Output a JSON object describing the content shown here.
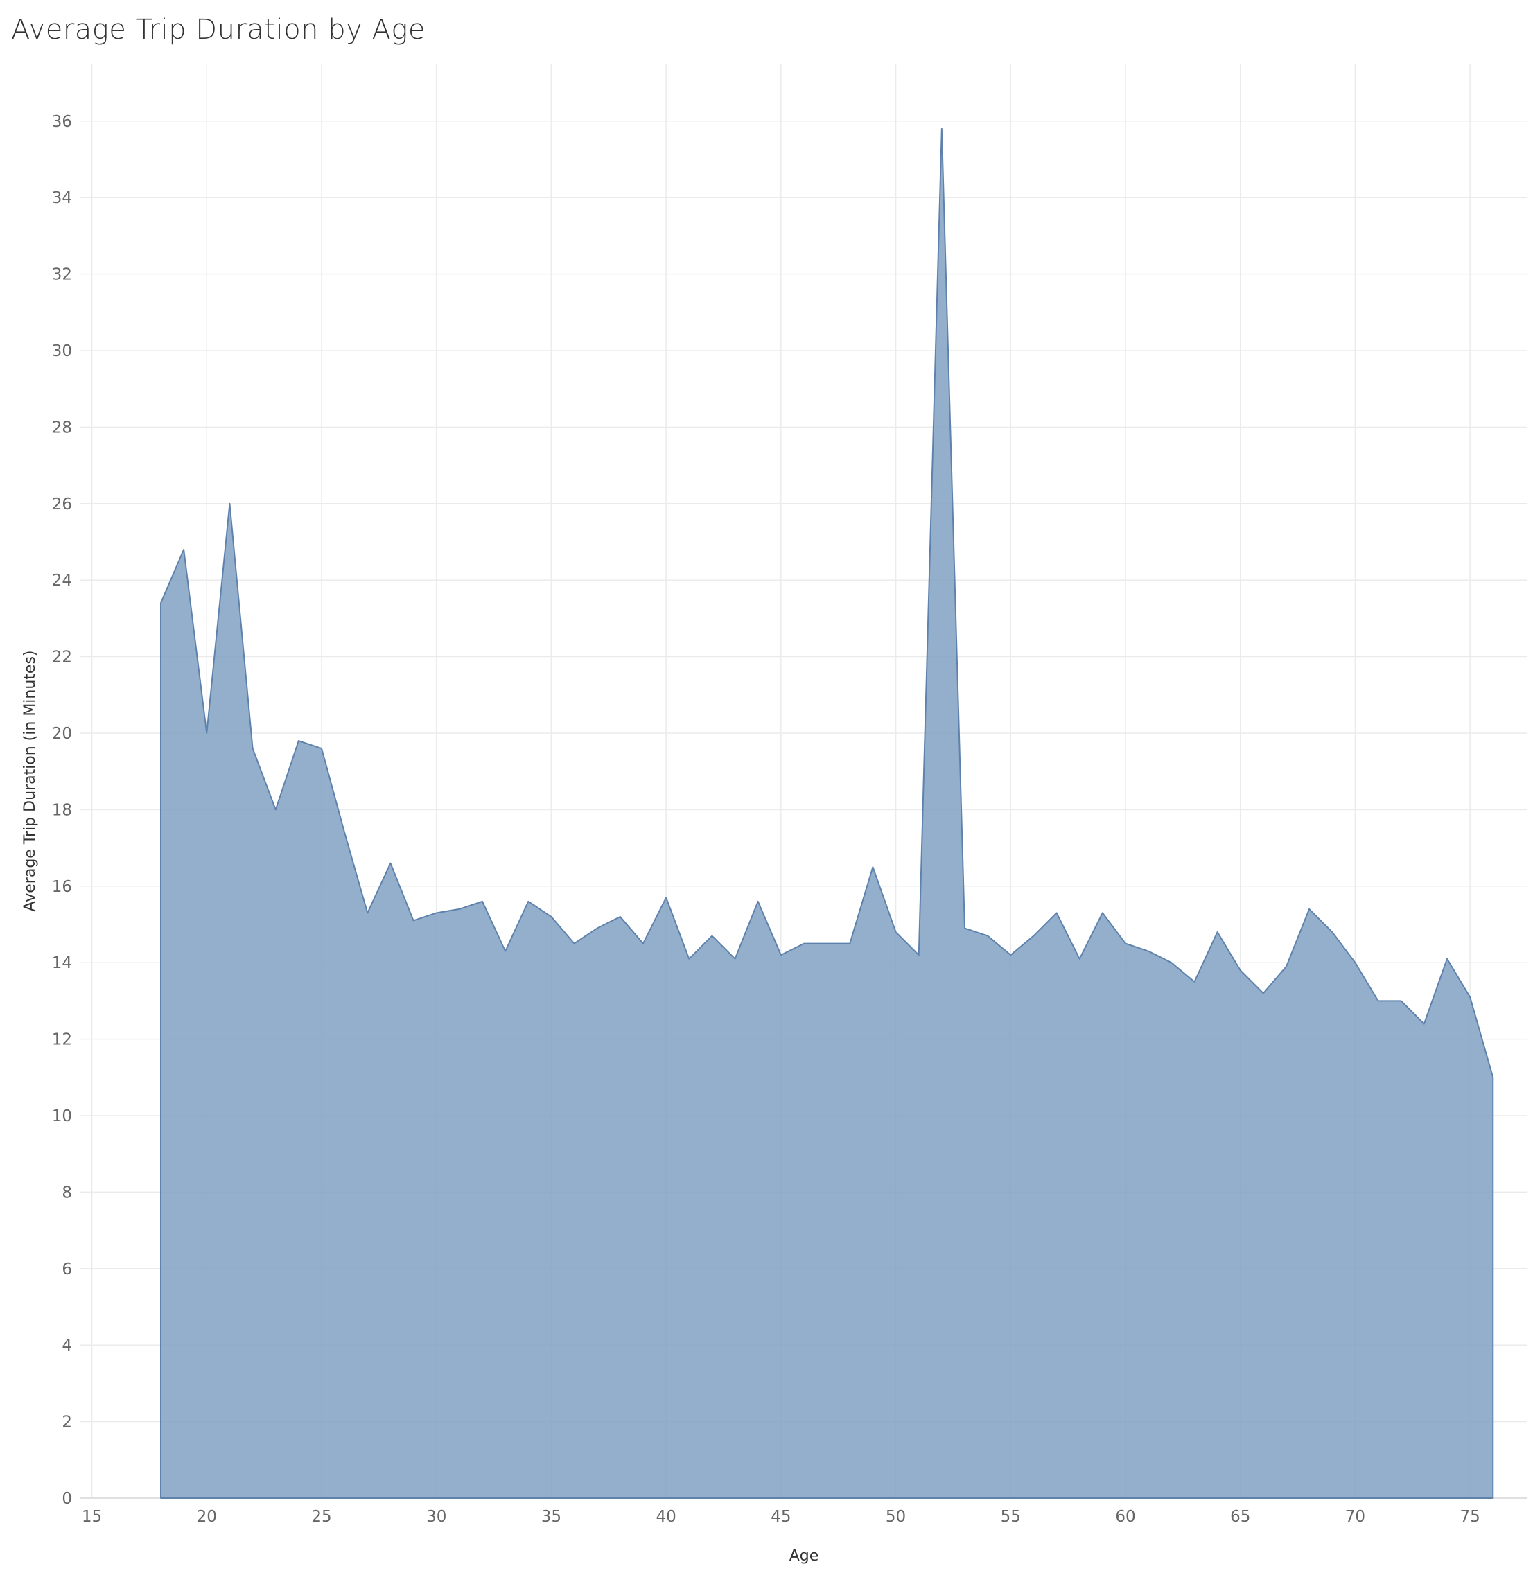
{
  "chart_data": {
    "type": "area",
    "title": "Average Trip Duration by Age",
    "xlabel": "Age",
    "ylabel": "Average Trip Duration (in Minutes)",
    "xlim": [
      14.5,
      77.5
    ],
    "ylim": [
      0,
      37.5
    ],
    "x_ticks": [
      15,
      20,
      25,
      30,
      35,
      40,
      45,
      50,
      55,
      60,
      65,
      70,
      75
    ],
    "y_ticks": [
      0,
      2,
      4,
      6,
      8,
      10,
      12,
      14,
      16,
      18,
      20,
      22,
      24,
      26,
      28,
      30,
      32,
      34,
      36
    ],
    "grid": true,
    "color": "#7d9dc0",
    "x": [
      18,
      19,
      20,
      21,
      22,
      23,
      24,
      25,
      26,
      27,
      28,
      29,
      30,
      31,
      32,
      33,
      34,
      35,
      36,
      37,
      38,
      39,
      40,
      41,
      42,
      43,
      44,
      45,
      46,
      47,
      48,
      49,
      50,
      51,
      52,
      53,
      54,
      55,
      56,
      57,
      58,
      59,
      60,
      61,
      62,
      63,
      64,
      65,
      66,
      67,
      68,
      69,
      70,
      71,
      72,
      73,
      74,
      75,
      76
    ],
    "values": [
      23.4,
      24.8,
      20.0,
      26.0,
      19.6,
      18.0,
      19.8,
      19.6,
      17.4,
      15.3,
      16.6,
      15.1,
      15.3,
      15.4,
      15.6,
      14.3,
      15.6,
      15.2,
      14.5,
      14.9,
      15.2,
      14.5,
      15.7,
      14.1,
      14.7,
      14.1,
      15.6,
      14.2,
      14.5,
      14.5,
      14.5,
      16.5,
      14.8,
      14.2,
      35.8,
      14.9,
      14.7,
      14.2,
      14.7,
      15.3,
      14.1,
      15.3,
      14.5,
      14.3,
      14.0,
      13.5,
      14.8,
      13.8,
      13.2,
      13.9,
      15.4,
      14.8,
      14.0,
      13.0,
      13.0,
      12.4,
      14.1,
      13.1,
      11.0
    ]
  }
}
